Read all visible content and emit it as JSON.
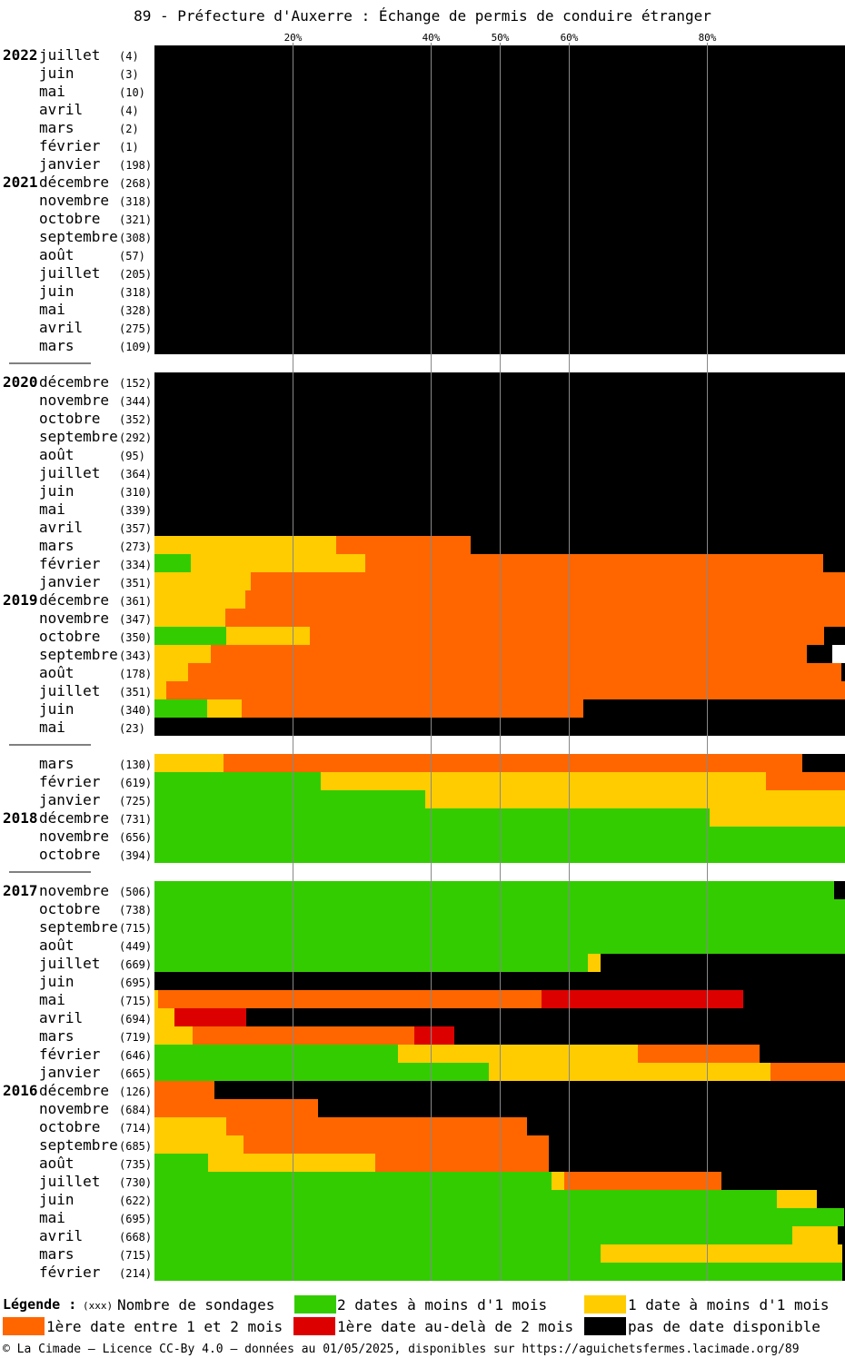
{
  "title": "89 - Préfecture d'Auxerre : Échange de permis de conduire étranger",
  "chart_data": {
    "type": "stacked-bar-horizontal",
    "x_ticks": [
      "20%",
      "40%",
      "50%",
      "60%",
      "80%"
    ],
    "x_tick_values": [
      20,
      40,
      50,
      60,
      80
    ],
    "xlim": [
      0,
      100
    ],
    "grid": true,
    "series_keys": [
      "green",
      "yellow",
      "orange",
      "red",
      "black"
    ],
    "groups": [
      {
        "rows": [
          {
            "year": "2022",
            "month": "juillet",
            "count": "(4)",
            "values": [
              0,
              0,
              0,
              0,
              100
            ]
          },
          {
            "month": "juin",
            "count": "(3)",
            "values": [
              0,
              0,
              0,
              0,
              100
            ]
          },
          {
            "month": "mai",
            "count": "(10)",
            "values": [
              0,
              0,
              0,
              0,
              100
            ]
          },
          {
            "month": "avril",
            "count": "(4)",
            "values": [
              0,
              0,
              0,
              0,
              100
            ]
          },
          {
            "month": "mars",
            "count": "(2)",
            "values": [
              0,
              0,
              0,
              0,
              100
            ]
          },
          {
            "month": "février",
            "count": "(1)",
            "values": [
              0,
              0,
              0,
              0,
              100
            ]
          },
          {
            "month": "janvier",
            "count": "(198)",
            "values": [
              0,
              0,
              0,
              0,
              100
            ]
          },
          {
            "year": "2021",
            "month": "décembre",
            "count": "(268)",
            "values": [
              0,
              0,
              0,
              0,
              100
            ]
          },
          {
            "month": "novembre",
            "count": "(318)",
            "values": [
              0,
              0,
              0,
              0,
              100
            ]
          },
          {
            "month": "octobre",
            "count": "(321)",
            "values": [
              0,
              0,
              0,
              0,
              100
            ]
          },
          {
            "month": "septembre",
            "count": "(308)",
            "values": [
              0,
              0,
              0,
              0,
              100
            ]
          },
          {
            "month": "août",
            "count": "(57)",
            "values": [
              0,
              0,
              0,
              0,
              100
            ]
          },
          {
            "month": "juillet",
            "count": "(205)",
            "values": [
              0,
              0,
              0,
              0,
              100
            ]
          },
          {
            "month": "juin",
            "count": "(318)",
            "values": [
              0,
              0,
              0,
              0,
              100
            ]
          },
          {
            "month": "mai",
            "count": "(328)",
            "values": [
              0,
              0,
              0,
              0,
              100
            ]
          },
          {
            "month": "avril",
            "count": "(275)",
            "values": [
              0,
              0,
              0,
              0,
              100
            ]
          },
          {
            "month": "mars",
            "count": "(109)",
            "values": [
              0,
              0,
              0,
              0,
              100
            ]
          }
        ]
      },
      {
        "rows": [
          {
            "year": "2020",
            "month": "décembre",
            "count": "(152)",
            "values": [
              0,
              0,
              0,
              0,
              100
            ]
          },
          {
            "month": "novembre",
            "count": "(344)",
            "values": [
              0,
              0,
              0,
              0,
              100
            ]
          },
          {
            "month": "octobre",
            "count": "(352)",
            "values": [
              0,
              0,
              0,
              0,
              100
            ]
          },
          {
            "month": "septembre",
            "count": "(292)",
            "values": [
              0,
              0,
              0,
              0,
              100
            ]
          },
          {
            "month": "août",
            "count": "(95)",
            "values": [
              0,
              0,
              0,
              0,
              100
            ]
          },
          {
            "month": "juillet",
            "count": "(364)",
            "values": [
              0,
              0,
              0,
              0,
              100
            ]
          },
          {
            "month": "juin",
            "count": "(310)",
            "values": [
              0,
              0,
              0,
              0,
              100
            ]
          },
          {
            "month": "mai",
            "count": "(339)",
            "values": [
              0,
              0,
              0,
              0,
              100
            ]
          },
          {
            "month": "avril",
            "count": "(357)",
            "values": [
              0,
              0,
              0,
              0,
              100
            ]
          },
          {
            "month": "mars",
            "count": "(273)",
            "values": [
              0,
              26.3,
              19.5,
              0,
              54.2
            ]
          },
          {
            "month": "février",
            "count": "(334)",
            "values": [
              5.3,
              25.2,
              66.4,
              0,
              3.1
            ]
          },
          {
            "month": "janvier",
            "count": "(351)",
            "values": [
              0,
              13.9,
              86.1,
              0,
              0
            ]
          },
          {
            "year": "2019",
            "month": "décembre",
            "count": "(361)",
            "values": [
              0,
              13.1,
              86.9,
              0,
              0
            ]
          },
          {
            "month": "novembre",
            "count": "(347)",
            "values": [
              0,
              10.2,
              89.8,
              0,
              0
            ]
          },
          {
            "month": "octobre",
            "count": "(350)",
            "values": [
              10.4,
              12.1,
              74.5,
              0,
              3.0
            ]
          },
          {
            "month": "septembre",
            "count": "(343)",
            "values": [
              0,
              8.1,
              86.4,
              0,
              3.7
            ]
          },
          {
            "month": "août",
            "count": "(178)",
            "values": [
              0,
              4.9,
              94.6,
              0,
              0.5
            ]
          },
          {
            "month": "juillet",
            "count": "(351)",
            "values": [
              0,
              1.7,
              98.3,
              0,
              0
            ]
          },
          {
            "month": "juin",
            "count": "(340)",
            "values": [
              7.6,
              5.0,
              49.5,
              0,
              37.9
            ]
          },
          {
            "month": "mai",
            "count": "(23)",
            "values": [
              0,
              0,
              0,
              0,
              100
            ]
          }
        ]
      },
      {
        "rows": [
          {
            "month": "mars",
            "count": "(130)",
            "values": [
              0,
              10,
              83.8,
              0,
              6.2
            ]
          },
          {
            "month": "février",
            "count": "(619)",
            "values": [
              24.1,
              64.5,
              11.4,
              0,
              0
            ]
          },
          {
            "month": "janvier",
            "count": "(725)",
            "values": [
              39.2,
              60.8,
              0,
              0,
              0
            ]
          },
          {
            "year": "2018",
            "month": "décembre",
            "count": "(731)",
            "values": [
              80.4,
              19.6,
              0,
              0,
              0
            ]
          },
          {
            "month": "novembre",
            "count": "(656)",
            "values": [
              100,
              0,
              0,
              0,
              0
            ]
          },
          {
            "month": "octobre",
            "count": "(394)",
            "values": [
              100,
              0,
              0,
              0,
              0
            ]
          }
        ]
      },
      {
        "rows": [
          {
            "year": "2017",
            "month": "novembre",
            "count": "(506)",
            "values": [
              98.4,
              0,
              0,
              0,
              1.6
            ]
          },
          {
            "month": "octobre",
            "count": "(738)",
            "values": [
              100,
              0,
              0,
              0,
              0
            ]
          },
          {
            "month": "septembre",
            "count": "(715)",
            "values": [
              100,
              0,
              0,
              0,
              0
            ]
          },
          {
            "month": "août",
            "count": "(449)",
            "values": [
              100,
              0,
              0,
              0,
              0
            ]
          },
          {
            "month": "juillet",
            "count": "(669)",
            "values": [
              62.8,
              1.8,
              0,
              0,
              35.4
            ]
          },
          {
            "month": "juin",
            "count": "(695)",
            "values": [
              0,
              0,
              0,
              0,
              100
            ]
          },
          {
            "month": "mai",
            "count": "(715)",
            "values": [
              0,
              0.5,
              55.5,
              29.2,
              14.8
            ]
          },
          {
            "month": "avril",
            "count": "(694)",
            "values": [
              0,
              2.9,
              0,
              10.4,
              86.7
            ]
          },
          {
            "month": "mars",
            "count": "(719)",
            "values": [
              0,
              5.5,
              32.1,
              5.8,
              56.6
            ]
          },
          {
            "month": "février",
            "count": "(646)",
            "values": [
              35.3,
              34.7,
              17.6,
              0,
              12.4
            ]
          },
          {
            "month": "janvier",
            "count": "(665)",
            "values": [
              48.4,
              40.8,
              10.8,
              0,
              0
            ]
          },
          {
            "year": "2016",
            "month": "décembre",
            "count": "(126)",
            "values": [
              0,
              0,
              8.7,
              0,
              91.3
            ]
          },
          {
            "month": "novembre",
            "count": "(684)",
            "values": [
              0,
              0,
              23.7,
              0,
              76.3
            ]
          },
          {
            "month": "octobre",
            "count": "(714)",
            "values": [
              0,
              10.4,
              43.6,
              0,
              46.0
            ]
          },
          {
            "month": "septembre",
            "count": "(685)",
            "values": [
              0,
              12.9,
              44.2,
              0,
              42.9
            ]
          },
          {
            "month": "août",
            "count": "(735)",
            "values": [
              7.8,
              24.2,
              25.1,
              0,
              42.9
            ]
          },
          {
            "month": "juillet",
            "count": "(730)",
            "values": [
              57.5,
              1.8,
              22.8,
              0,
              17.9
            ]
          },
          {
            "month": "juin",
            "count": "(622)",
            "values": [
              90.1,
              5.8,
              0,
              0,
              4.1
            ]
          },
          {
            "month": "mai",
            "count": "(695)",
            "values": [
              99.9,
              0,
              0,
              0,
              0.1
            ]
          },
          {
            "month": "avril",
            "count": "(668)",
            "values": [
              92.4,
              6.6,
              0,
              0,
              1.0
            ]
          },
          {
            "month": "mars",
            "count": "(715)",
            "values": [
              64.6,
              35.0,
              0,
              0,
              0.4
            ]
          },
          {
            "month": "février",
            "count": "(214)",
            "values": [
              99.6,
              0,
              0,
              0,
              0.4
            ]
          }
        ]
      }
    ]
  },
  "legend": {
    "title": "Légende :",
    "count_marker": "(xxx)",
    "count_label": "Nombre de sondages",
    "green_label": "2 dates à moins d'1 mois",
    "yellow_label": "1 date à moins d'1 mois",
    "orange_label": "1ère date entre 1 et 2 mois",
    "red_label": "1ère date au-delà de 2 mois",
    "black_label": "pas de date disponible"
  },
  "colors": {
    "green": "#33cc00",
    "yellow": "#ffcc00",
    "orange": "#ff6600",
    "red": "#dd0000",
    "black": "#000000",
    "grid": "#888888"
  },
  "footer": "© La Cimade – Licence CC-By 4.0 – données au 01/05/2025, disponibles sur https://aguichetsfermes.lacimade.org/89"
}
